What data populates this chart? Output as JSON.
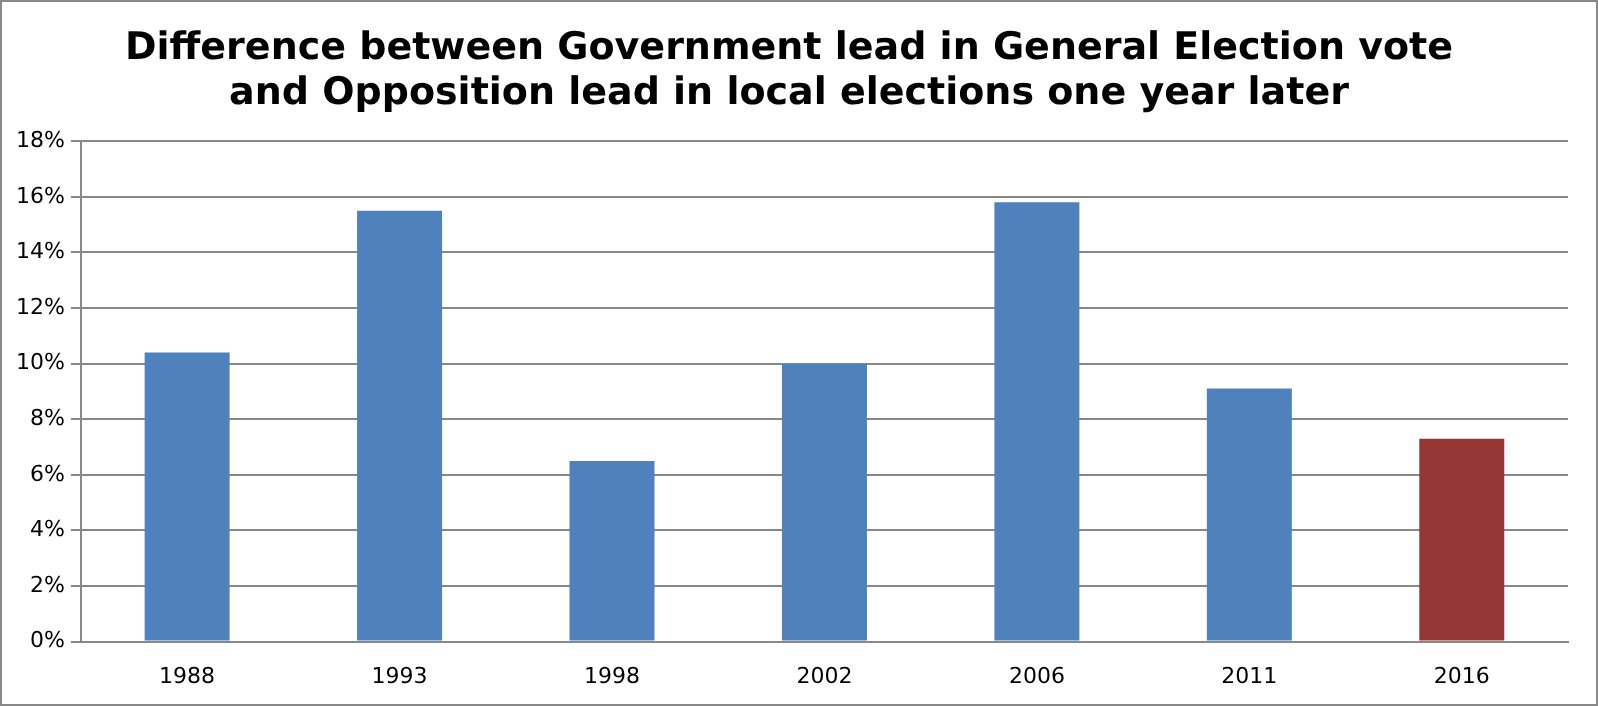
{
  "chart_data": {
    "type": "bar",
    "title": [
      "Difference between Government lead in General Election vote",
      "and Opposition lead in local elections one year later"
    ],
    "categories": [
      "1988",
      "1993",
      "1998",
      "2002",
      "2006",
      "2011",
      "2016"
    ],
    "values": [
      10.4,
      15.5,
      6.5,
      10.0,
      15.8,
      9.1,
      7.3
    ],
    "colors": [
      "#4f81bd",
      "#4f81bd",
      "#4f81bd",
      "#4f81bd",
      "#4f81bd",
      "#4f81bd",
      "#953735"
    ],
    "ylim": [
      0,
      18
    ],
    "yticks": [
      {
        "value": 0,
        "label": "0%"
      },
      {
        "value": 2,
        "label": "2%"
      },
      {
        "value": 4,
        "label": "4%"
      },
      {
        "value": 6,
        "label": "6%"
      },
      {
        "value": 8,
        "label": "8%"
      },
      {
        "value": 10,
        "label": "10%"
      },
      {
        "value": 12,
        "label": "12%"
      },
      {
        "value": 14,
        "label": "14%"
      },
      {
        "value": 16,
        "label": "16%"
      },
      {
        "value": 18,
        "label": "18%"
      }
    ],
    "grid": "y",
    "legend": false
  }
}
